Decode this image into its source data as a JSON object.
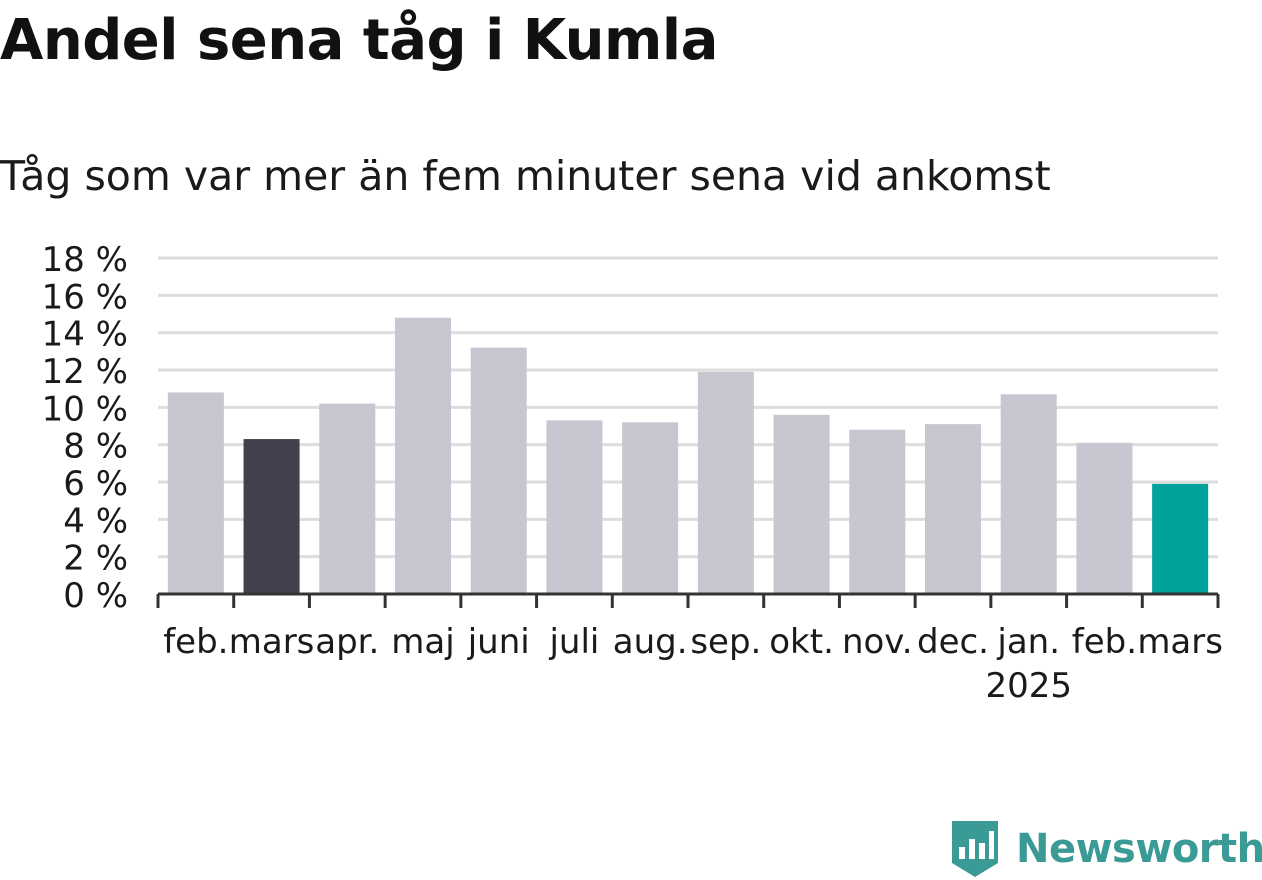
{
  "title": "Andel sena tåg i Kumla",
  "subtitle": "Tåg som var mer än fem minuter sena vid ankomst",
  "brand": {
    "name": "Newsworthy",
    "color": "#3a9a95",
    "icon": "bar-chart-flag-icon"
  },
  "colors": {
    "default_bar": "#c8c6d0",
    "highlight_prev": "#42404c",
    "highlight_current": "#00a39a",
    "grid": "#dddddd",
    "axis": "#333333",
    "text": "#1a1a1a"
  },
  "chart_data": {
    "type": "bar",
    "categories": [
      "feb.",
      "mars",
      "apr.",
      "maj",
      "juni",
      "juli",
      "aug.",
      "sep.",
      "okt.",
      "nov.",
      "dec.",
      "jan.",
      "feb.",
      "mars"
    ],
    "year_labels": [
      {
        "index": 11,
        "label": "2025"
      }
    ],
    "values": [
      10.8,
      8.3,
      10.2,
      14.8,
      13.2,
      9.3,
      9.2,
      11.9,
      9.6,
      8.8,
      9.1,
      10.7,
      8.1,
      5.9
    ],
    "highlight": {
      "1": "highlight_prev",
      "13": "highlight_current"
    },
    "y_ticks": [
      "0 %",
      "2 %",
      "4 %",
      "6 %",
      "8 %",
      "10 %",
      "12 %",
      "14 %",
      "16 %",
      "18 %"
    ],
    "ylim": [
      0,
      18
    ],
    "y_unit": "%",
    "grid": true,
    "legend": "none",
    "xlabel": "",
    "ylabel": ""
  }
}
